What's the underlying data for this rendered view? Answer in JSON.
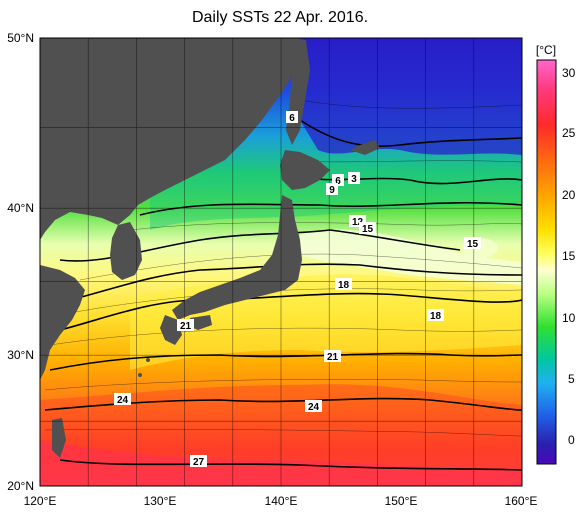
{
  "title": "Daily SSTs 22 Apr. 2016.",
  "colorbar": {
    "unit": "[°C]",
    "ticks": [
      "30",
      "25",
      "20",
      "15",
      "10",
      "5",
      "0"
    ],
    "stops": [
      "#ff66cc",
      "#ff2a4a",
      "#ff4a14",
      "#ff8c00",
      "#ffd000",
      "#ffff40",
      "#ffffcc",
      "#a8ff6a",
      "#30e830",
      "#00c8b0",
      "#1ea8e8",
      "#2050e8",
      "#2020a0",
      "#4a08b8"
    ]
  },
  "axes": {
    "lat_labels": [
      "50°N",
      "40°N",
      "30°N",
      "20°N"
    ],
    "lon_labels": [
      "120°E",
      "130°E",
      "140°E",
      "150°E",
      "160°E"
    ]
  },
  "contour_labels": [
    "6",
    "6",
    "3",
    "9",
    "12",
    "15",
    "15",
    "18",
    "18",
    "21",
    "21",
    "24",
    "24",
    "27"
  ],
  "colors": {
    "land": "#505050",
    "ocean_cold": "#1a3cd0",
    "ocean_warm": "#ff3030"
  }
}
